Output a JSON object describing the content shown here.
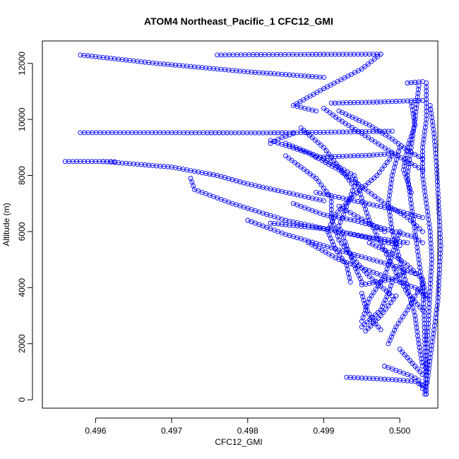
{
  "chart_data": {
    "type": "scatter",
    "title": "ATOM4 Northeast_Pacific_1 CFC12_GMI",
    "xlabel": "CFC12_GMI",
    "ylabel": "Altitude (m)",
    "xlim": [
      0.4953,
      0.5005
    ],
    "ylim": [
      -300,
      12800
    ],
    "xticks": [
      "0.496",
      "0.497",
      "0.498",
      "0.499",
      "0.500"
    ],
    "xtick_values": [
      0.496,
      0.497,
      0.498,
      0.499,
      0.5
    ],
    "yticks": [
      "0",
      "2000",
      "4000",
      "6000",
      "8000",
      "10000",
      "12000"
    ],
    "ytick_values": [
      0,
      2000,
      4000,
      6000,
      8000,
      10000,
      12000
    ],
    "marker": "open-circle",
    "color": "#0000ff",
    "series": [
      {
        "segments": [
          [
            [
              0.4976,
              12300
            ],
            [
              0.4988,
              12320
            ],
            [
              0.49975,
              12330
            ]
          ],
          [
            [
              0.49975,
              12330
            ],
            [
              0.4995,
              11800
            ],
            [
              0.499,
              11100
            ],
            [
              0.4986,
              10500
            ],
            [
              0.4989,
              10300
            ]
          ],
          [
            [
              0.4958,
              9530
            ],
            [
              0.497,
              9530
            ],
            [
              0.4982,
              9520
            ],
            [
              0.499,
              9540
            ],
            [
              0.4999,
              9580
            ]
          ],
          [
            [
              0.4986,
              9500
            ],
            [
              0.4984,
              9300
            ],
            [
              0.4983,
              9150
            ]
          ],
          [
            [
              0.4956,
              8500
            ],
            [
              0.496,
              8500
            ],
            [
              0.49625,
              8490
            ]
          ],
          [
            [
              0.4961,
              8500
            ],
            [
              0.497,
              8300
            ],
            [
              0.4976,
              8000
            ],
            [
              0.498,
              7700
            ],
            [
              0.4985,
              7400
            ],
            [
              0.499,
              7100
            ]
          ],
          [
            [
              0.4958,
              12300
            ],
            [
              0.4968,
              12000
            ],
            [
              0.498,
              11700
            ],
            [
              0.499,
              11500
            ]
          ],
          [
            [
              0.49725,
              7900
            ],
            [
              0.4973,
              7500
            ],
            [
              0.4978,
              7000
            ],
            [
              0.4985,
              6400
            ],
            [
              0.4992,
              6000
            ],
            [
              0.4997,
              5700
            ],
            [
              0.5,
              5500
            ]
          ],
          [
            [
              0.4989,
              8650
            ],
            [
              0.4996,
              8720
            ],
            [
              0.4999,
              8780
            ]
          ],
          [
            [
              0.4983,
              9250
            ],
            [
              0.4988,
              8800
            ],
            [
              0.4992,
              8200
            ],
            [
              0.4995,
              7600
            ],
            [
              0.4998,
              7000
            ],
            [
              0.5001,
              6500
            ],
            [
              0.5003,
              6000
            ]
          ],
          [
            [
              0.4985,
              9150
            ],
            [
              0.499,
              8600
            ],
            [
              0.4994,
              8000
            ],
            [
              0.4995,
              7200
            ],
            [
              0.4996,
              6400
            ],
            [
              0.49975,
              5600
            ],
            [
              0.4999,
              4800
            ],
            [
              0.5001,
              3800
            ],
            [
              0.5003,
              3200
            ]
          ],
          [
            [
              0.499,
              10400
            ],
            [
              0.4992,
              10000
            ],
            [
              0.4995,
              9500
            ],
            [
              0.49985,
              8900
            ],
            [
              0.5001,
              8500
            ],
            [
              0.5003,
              8200
            ]
          ],
          [
            [
              0.4991,
              10580
            ],
            [
              0.4997,
              10620
            ],
            [
              0.5,
              10650
            ],
            [
              0.5003,
              10680
            ]
          ],
          [
            [
              0.4992,
              10300
            ],
            [
              0.4996,
              9800
            ],
            [
              0.4999,
              9300
            ],
            [
              0.5001,
              8900
            ],
            [
              0.5003,
              8600
            ]
          ],
          [
            [
              0.4987,
              9700
            ],
            [
              0.499,
              9000
            ],
            [
              0.4992,
              8300
            ],
            [
              0.4994,
              7600
            ],
            [
              0.4993,
              6900
            ],
            [
              0.4992,
              6200
            ],
            [
              0.4993,
              5500
            ],
            [
              0.4994,
              4800
            ],
            [
              0.4995,
              4200
            ]
          ],
          [
            [
              0.4985,
              8700
            ],
            [
              0.4989,
              7900
            ],
            [
              0.4991,
              7200
            ],
            [
              0.4991,
              6500
            ],
            [
              0.4992,
              5700
            ],
            [
              0.4994,
              5000
            ],
            [
              0.4996,
              4400
            ],
            [
              0.4999,
              3700
            ]
          ],
          [
            [
              0.4999,
              8700
            ],
            [
              0.4997,
              8000
            ],
            [
              0.4994,
              7300
            ],
            [
              0.49915,
              6600
            ],
            [
              0.49905,
              6000
            ],
            [
              0.49915,
              5400
            ],
            [
              0.4993,
              4800
            ],
            [
              0.49935,
              4200
            ]
          ],
          [
            [
              0.4986,
              7000
            ],
            [
              0.499,
              6600
            ],
            [
              0.4994,
              6400
            ],
            [
              0.4998,
              6100
            ],
            [
              0.5002,
              5800
            ],
            [
              0.5003,
              5600
            ]
          ],
          [
            [
              0.4989,
              7400
            ],
            [
              0.4994,
              7100
            ],
            [
              0.4999,
              6800
            ],
            [
              0.5003,
              6500
            ]
          ],
          [
            [
              0.4996,
              5600
            ],
            [
              0.4999,
              5200
            ],
            [
              0.5001,
              4800
            ],
            [
              0.5003,
              4300
            ],
            [
              0.50035,
              3600
            ]
          ],
          [
            [
              0.498,
              6400
            ],
            [
              0.4985,
              5900
            ],
            [
              0.499,
              5500
            ],
            [
              0.4995,
              5100
            ],
            [
              0.4999,
              4800
            ],
            [
              0.5002,
              4500
            ]
          ],
          [
            [
              0.4983,
              6300
            ],
            [
              0.499,
              6100
            ],
            [
              0.4996,
              5800
            ],
            [
              0.5001,
              5600
            ]
          ],
          [
            [
              0.4988,
              5600
            ],
            [
              0.4992,
              5000
            ],
            [
              0.4996,
              4600
            ],
            [
              0.4999,
              4300
            ],
            [
              0.5002,
              4000
            ],
            [
              0.50035,
              3700
            ]
          ],
          [
            [
              0.4995,
              3800
            ],
            [
              0.49955,
              3300
            ],
            [
              0.49965,
              2800
            ],
            [
              0.49975,
              2500
            ]
          ],
          [
            [
              0.4995,
              2800
            ],
            [
              0.4996,
              3600
            ],
            [
              0.4998,
              4400
            ],
            [
              0.4999,
              5200
            ],
            [
              0.5,
              6000
            ]
          ],
          [
            [
              0.4995,
              2600
            ],
            [
              0.49975,
              3200
            ],
            [
              0.49985,
              3800
            ],
            [
              0.4999,
              4200
            ]
          ],
          [
            [
              0.49955,
              2450
            ],
            [
              0.49975,
              3000
            ],
            [
              0.49995,
              3700
            ]
          ],
          [
            [
              0.49985,
              2000
            ],
            [
              0.49995,
              2600
            ],
            [
              0.5001,
              3200
            ],
            [
              0.5002,
              3700
            ],
            [
              0.5003,
              4100
            ]
          ],
          [
            [
              0.5,
              9000
            ],
            [
              0.4999,
              8000
            ],
            [
              0.49985,
              7000
            ],
            [
              0.4999,
              6000
            ],
            [
              0.5,
              5000
            ],
            [
              0.5001,
              4000
            ],
            [
              0.5002,
              3000
            ],
            [
              0.50025,
              2000
            ],
            [
              0.5003,
              1200
            ]
          ],
          [
            [
              0.50025,
              11200
            ],
            [
              0.5002,
              10000
            ],
            [
              0.50015,
              9000
            ],
            [
              0.5001,
              8000
            ],
            [
              0.50015,
              7000
            ],
            [
              0.5002,
              6000
            ],
            [
              0.50025,
              5000
            ],
            [
              0.5003,
              4000
            ],
            [
              0.50032,
              3000
            ],
            [
              0.50033,
              2000
            ],
            [
              0.50034,
              1000
            ],
            [
              0.50035,
              200
            ]
          ],
          [
            [
              0.50035,
              11300
            ],
            [
              0.50035,
              10000
            ],
            [
              0.5003,
              9000
            ],
            [
              0.5003,
              8000
            ],
            [
              0.50035,
              7000
            ],
            [
              0.5004,
              6000
            ],
            [
              0.50042,
              5000
            ],
            [
              0.5004,
              4000
            ],
            [
              0.50038,
              3000
            ],
            [
              0.50036,
              2000
            ],
            [
              0.50035,
              1000
            ],
            [
              0.50033,
              200
            ]
          ],
          [
            [
              0.5004,
              10500
            ],
            [
              0.50045,
              9500
            ],
            [
              0.50048,
              8500
            ],
            [
              0.5005,
              7500
            ],
            [
              0.50052,
              6500
            ],
            [
              0.50054,
              5500
            ],
            [
              0.50052,
              4500
            ],
            [
              0.5005,
              3500
            ],
            [
              0.50045,
              2500
            ],
            [
              0.5004,
              1500
            ],
            [
              0.50036,
              600
            ]
          ],
          [
            [
              0.5001,
              11300
            ],
            [
              0.5003,
              11350
            ]
          ],
          [
            [
              0.50015,
              10600
            ],
            [
              0.5002,
              9800
            ],
            [
              0.5001,
              9000
            ],
            [
              0.50005,
              8200
            ],
            [
              0.50015,
              7400
            ]
          ],
          [
            [
              0.4993,
              800
            ],
            [
              0.4997,
              750
            ],
            [
              0.5,
              700
            ],
            [
              0.5002,
              650
            ],
            [
              0.5003,
              500
            ]
          ],
          [
            [
              0.4998,
              1200
            ],
            [
              0.5,
              1000
            ],
            [
              0.50015,
              850
            ],
            [
              0.50025,
              700
            ],
            [
              0.5003,
              400
            ]
          ],
          [
            [
              0.5,
              1800
            ],
            [
              0.5001,
              1500
            ],
            [
              0.5002,
              1200
            ],
            [
              0.5003,
              900
            ]
          ],
          [
            [
              0.4992,
              6900
            ],
            [
              0.4994,
              6600
            ],
            [
              0.4996,
              6300
            ],
            [
              0.4998,
              6000
            ]
          ],
          [
            [
              0.4995,
              4100
            ],
            [
              0.4999,
              4300
            ],
            [
              0.5001,
              4600
            ]
          ]
        ]
      }
    ]
  }
}
